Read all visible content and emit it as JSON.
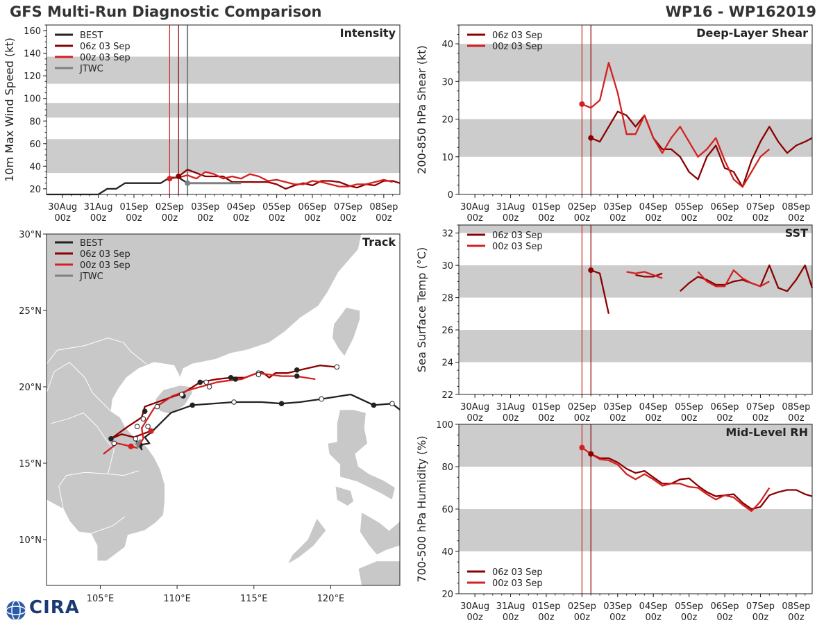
{
  "header": {
    "title": "GFS Multi-Run Diagnostic Comparison",
    "storm_id": "WP16 - WP162019"
  },
  "logo": {
    "text": "CIRA"
  },
  "colors": {
    "best": "#222222",
    "run1": "#8b0000",
    "run2": "#d42020",
    "jtwc": "#808080",
    "band": "#cccccc",
    "land": "#c8c8c8"
  },
  "time_axis": {
    "ticks": [
      {
        "day": "30Aug",
        "hour": "00z"
      },
      {
        "day": "31Aug",
        "hour": "00z"
      },
      {
        "day": "01Sep",
        "hour": "00z"
      },
      {
        "day": "02Sep",
        "hour": "00z"
      },
      {
        "day": "03Sep",
        "hour": "00z"
      },
      {
        "day": "04Sep",
        "hour": "00z"
      },
      {
        "day": "05Sep",
        "hour": "00z"
      },
      {
        "day": "06Sep",
        "hour": "00z"
      },
      {
        "day": "07Sep",
        "hour": "00z"
      },
      {
        "day": "08Sep",
        "hour": "00z"
      }
    ],
    "units": "days since 30Aug 00z",
    "xlim": [
      -0.45,
      9.45
    ],
    "run_init_times": [
      3.0,
      3.25
    ],
    "jtwc_time": 3.5
  },
  "chart_data": [
    {
      "id": "intensity",
      "type": "line",
      "title": "Intensity",
      "ylabel": "10m Max Wind Speed (kt)",
      "ylim": [
        15,
        165
      ],
      "yticks": [
        20,
        40,
        60,
        80,
        100,
        120,
        140,
        160
      ],
      "bands": [
        [
          34,
          64
        ],
        [
          83,
          96
        ],
        [
          113,
          137
        ]
      ],
      "legend": [
        "BEST",
        "06z 03 Sep",
        "00z 03 Sep",
        "JTWC"
      ],
      "series": [
        {
          "name": "BEST",
          "key": "best",
          "x": [
            -0.45,
            0,
            0.5,
            1.0,
            1.25,
            1.5,
            1.75,
            2.0,
            2.25,
            2.5,
            2.75,
            3.0,
            3.25,
            3.5
          ],
          "y": [
            15,
            15,
            15,
            15,
            20,
            20,
            25,
            25,
            25,
            25,
            25,
            30,
            30,
            25
          ]
        },
        {
          "name": "06z 03 Sep",
          "key": "run1",
          "x": [
            3.25,
            3.5,
            3.75,
            4.0,
            4.25,
            4.5,
            4.75,
            5.0,
            5.25,
            5.5,
            5.75,
            6.0,
            6.25,
            6.5,
            6.75,
            7.0,
            7.25,
            7.5,
            7.75,
            8.0,
            8.25,
            8.5,
            8.75,
            9.0,
            9.25,
            9.45
          ],
          "y": [
            31,
            37,
            34,
            31,
            31,
            31,
            26,
            26,
            26,
            26,
            26,
            24,
            20,
            23,
            25,
            23,
            27,
            27,
            26,
            23,
            21,
            24,
            23,
            27,
            27,
            25
          ]
        },
        {
          "name": "00z 03 Sep",
          "key": "run2",
          "x": [
            3.0,
            3.25,
            3.5,
            3.75,
            4.0,
            4.25,
            4.5,
            4.75,
            5.0,
            5.25,
            5.5,
            5.75,
            6.0,
            6.25,
            6.5,
            6.75,
            7.0,
            7.25,
            7.5,
            7.75,
            8.0,
            8.25,
            8.5,
            8.75,
            9.0,
            9.25
          ],
          "y": [
            29,
            30,
            32,
            29,
            35,
            33,
            29,
            31,
            29,
            33,
            31,
            27,
            28,
            26,
            24,
            24,
            27,
            26,
            24,
            22,
            22,
            24,
            24,
            26,
            28,
            26
          ]
        },
        {
          "name": "JTWC",
          "key": "jtwc",
          "x": [
            3.5,
            5.0
          ],
          "y": [
            25,
            25
          ]
        }
      ],
      "markers": [
        {
          "series": "run1",
          "x": 3.25,
          "y": 31
        },
        {
          "series": "run2",
          "x": 3.0,
          "y": 29
        },
        {
          "series": "jtwc",
          "x": 3.5,
          "y": 25
        }
      ]
    },
    {
      "id": "shear",
      "type": "line",
      "title": "Deep-Layer Shear",
      "ylabel": "200-850 hPa Shear (kt)",
      "ylim": [
        0,
        45
      ],
      "yticks": [
        0,
        10,
        20,
        30,
        40
      ],
      "bands": [
        [
          10,
          20
        ],
        [
          30,
          40
        ]
      ],
      "legend": [
        "06z 03 Sep",
        "00z 03 Sep"
      ],
      "series": [
        {
          "name": "06z 03 Sep",
          "key": "run1",
          "x": [
            3.25,
            3.5,
            3.75,
            4.0,
            4.25,
            4.5,
            4.75,
            5.0,
            5.25,
            5.5,
            5.75,
            6.0,
            6.25,
            6.5,
            6.75,
            7.0,
            7.25,
            7.5,
            7.75,
            8.0,
            8.25,
            8.5,
            8.75,
            9.0,
            9.25,
            9.45
          ],
          "y": [
            15,
            14,
            18,
            22,
            21,
            18,
            21,
            15,
            12,
            12,
            10,
            6,
            4,
            10,
            13,
            7,
            6,
            2,
            9,
            14,
            18,
            14,
            11,
            13,
            14,
            15
          ]
        },
        {
          "name": "00z 03 Sep",
          "key": "run2",
          "x": [
            3.0,
            3.25,
            3.5,
            3.75,
            4.0,
            4.25,
            4.5,
            4.75,
            5.0,
            5.25,
            5.5,
            5.75,
            6.0,
            6.25,
            6.5,
            6.75,
            7.0,
            7.25,
            7.5,
            7.75,
            8.0,
            8.25
          ],
          "y": [
            24,
            23,
            25,
            35,
            27,
            16,
            16,
            21,
            15,
            11,
            15,
            18,
            14,
            10,
            12,
            15,
            9,
            4,
            2,
            6,
            10,
            12
          ]
        }
      ],
      "markers": [
        {
          "series": "run1",
          "x": 3.25,
          "y": 15
        },
        {
          "series": "run2",
          "x": 3.0,
          "y": 24
        }
      ]
    },
    {
      "id": "sst",
      "type": "line",
      "title": "SST",
      "ylabel": "Sea Surface Temp (°C)",
      "ylim": [
        22,
        32.5
      ],
      "yticks": [
        22,
        24,
        26,
        28,
        30,
        32
      ],
      "bands": [
        [
          24,
          26
        ],
        [
          28,
          30
        ],
        [
          32,
          34
        ]
      ],
      "legend": [
        "06z 03 Sep",
        "00z 03 Sep"
      ],
      "series": [
        {
          "name": "06z 03 Sep",
          "key": "run1",
          "segments": [
            {
              "x": [
                3.25,
                3.5,
                3.75
              ],
              "y": [
                29.7,
                29.5,
                27.0
              ]
            },
            {
              "x": [
                4.5,
                4.75,
                5.0,
                5.25
              ],
              "y": [
                29.4,
                29.3,
                29.3,
                29.5
              ]
            },
            {
              "x": [
                5.75,
                6.0,
                6.25,
                6.5,
                6.75,
                7.0,
                7.25,
                7.5,
                7.75,
                8.0,
                8.25,
                8.5,
                8.75,
                9.0,
                9.25,
                9.45
              ],
              "y": [
                28.4,
                28.9,
                29.3,
                29.1,
                28.8,
                28.8,
                29.0,
                29.1,
                28.9,
                28.7,
                30.0,
                28.6,
                28.4,
                29.1,
                30.0,
                28.6
              ]
            }
          ]
        },
        {
          "name": "00z 03 Sep",
          "key": "run2",
          "segments": [
            {
              "x": [
                4.25,
                4.5,
                4.75,
                5.0,
                5.25
              ],
              "y": [
                29.6,
                29.5,
                29.6,
                29.4,
                29.2
              ]
            },
            {
              "x": [
                6.25,
                6.5,
                6.75,
                7.0,
                7.25,
                7.5,
                7.75,
                8.0,
                8.25
              ],
              "y": [
                29.6,
                29.0,
                28.7,
                28.7,
                29.7,
                29.2,
                28.9,
                28.7,
                29.0
              ]
            }
          ]
        }
      ],
      "markers": [
        {
          "series": "run1",
          "x": 3.25,
          "y": 29.7
        }
      ]
    },
    {
      "id": "rh",
      "type": "line",
      "title": "Mid-Level RH",
      "ylabel": "700-500 hPa Humidity (%)",
      "ylim": [
        20,
        100
      ],
      "yticks": [
        20,
        40,
        60,
        80,
        100
      ],
      "bands": [
        [
          40,
          60
        ],
        [
          80,
          100
        ]
      ],
      "legend": [
        "06z 03 Sep",
        "00z 03 Sep"
      ],
      "legend_position": "bottom-left",
      "series": [
        {
          "name": "06z 03 Sep",
          "key": "run1",
          "x": [
            3.25,
            3.5,
            3.75,
            4.0,
            4.25,
            4.5,
            4.75,
            5.0,
            5.25,
            5.5,
            5.75,
            6.0,
            6.25,
            6.5,
            6.75,
            7.0,
            7.25,
            7.5,
            7.75,
            8.0,
            8.25,
            8.5,
            8.75,
            9.0,
            9.25,
            9.45
          ],
          "y": [
            86,
            84,
            84,
            82,
            79,
            77,
            78,
            75,
            72,
            72,
            74,
            74.5,
            71,
            68,
            66,
            66.5,
            67,
            63,
            60,
            61,
            66.5,
            68,
            69,
            69,
            67,
            66
          ]
        },
        {
          "name": "00z 03 Sep",
          "key": "run2",
          "x": [
            3.0,
            3.25,
            3.5,
            3.75,
            4.0,
            4.25,
            4.5,
            4.75,
            5.0,
            5.25,
            5.5,
            5.75,
            6.0,
            6.25,
            6.5,
            6.75,
            7.0,
            7.25,
            7.5,
            7.75,
            8.0,
            8.25
          ],
          "y": [
            89,
            86,
            83.5,
            83,
            81,
            76.5,
            74,
            76.5,
            74,
            71,
            72,
            72,
            70.5,
            70,
            67,
            64.5,
            66.5,
            65.5,
            62,
            59,
            63.5,
            70
          ]
        }
      ],
      "markers": [
        {
          "series": "run1",
          "x": 3.25,
          "y": 86
        },
        {
          "series": "run2",
          "x": 3.0,
          "y": 89
        }
      ]
    },
    {
      "id": "track",
      "type": "map",
      "title": "Track",
      "lon_range": [
        101.5,
        124.5
      ],
      "lat_range": [
        7,
        30
      ],
      "lon_ticks": [
        105,
        110,
        115,
        120
      ],
      "lat_ticks": [
        10,
        15,
        20,
        25,
        30
      ],
      "lon_tick_labels": [
        "105°E",
        "110°E",
        "115°E",
        "120°E"
      ],
      "lat_tick_labels": [
        "10°N",
        "15°N",
        "20°N",
        "25°N",
        "30°N"
      ],
      "legend": [
        "BEST",
        "06z 03 Sep",
        "00z 03 Sep",
        "JTWC"
      ],
      "tracks": [
        {
          "name": "BEST",
          "key": "best",
          "lon": [
            124.5,
            124.0,
            122.8,
            121.3,
            119.4,
            118.0,
            116.8,
            115.5,
            113.7,
            111.0,
            109.6,
            108.9,
            108.3,
            107.9,
            108.2,
            107.6,
            107.7,
            107.3
          ],
          "lat": [
            18.5,
            18.9,
            18.8,
            19.5,
            19.2,
            19.0,
            18.9,
            19.0,
            19.0,
            18.8,
            18.3,
            17.6,
            17.0,
            16.7,
            16.3,
            16.2,
            15.9,
            16.5
          ],
          "dots_filled": [
            [
              122.8,
              18.8
            ],
            [
              116.8,
              18.9
            ],
            [
              111.0,
              18.8
            ],
            [
              107.6,
              16.2
            ]
          ],
          "dots_open": [
            [
              124.0,
              18.9
            ],
            [
              119.4,
              19.2
            ],
            [
              113.7,
              19.0
            ]
          ]
        },
        {
          "name": "06z 03 Sep",
          "key": "run1",
          "lon": [
            108.3,
            108.0,
            107.2,
            106.4,
            105.7,
            106.8,
            107.7,
            107.9,
            109.0,
            110.4,
            111.5,
            112.6,
            113.5,
            114.4,
            115.5,
            116.0,
            116.4,
            117.2,
            118.0,
            119.3,
            120.3
          ],
          "lat": [
            17.1,
            17.0,
            16.7,
            16.9,
            16.6,
            17.4,
            18.0,
            18.7,
            19.1,
            19.6,
            20.3,
            20.5,
            20.6,
            20.6,
            21.0,
            20.6,
            20.9,
            20.9,
            21.1,
            21.4,
            21.3
          ],
          "dots_filled": [
            [
              108.3,
              17.1
            ],
            [
              105.7,
              16.6
            ],
            [
              107.9,
              18.4
            ],
            [
              110.4,
              19.4
            ],
            [
              111.5,
              20.3
            ],
            [
              113.5,
              20.6
            ],
            [
              117.8,
              21.1
            ]
          ],
          "dots_open": [
            [
              107.3,
              16.6
            ],
            [
              107.8,
              17.9
            ],
            [
              111.9,
              20.3
            ],
            [
              115.3,
              20.9
            ],
            [
              120.4,
              21.3
            ]
          ]
        },
        {
          "name": "00z 03 Sep",
          "key": "run2",
          "lon": [
            105.2,
            106.1,
            107.0,
            107.4,
            107.8,
            107.7,
            108.5,
            109.7,
            110.8,
            111.9,
            112.6,
            113.3,
            114.2,
            115.2,
            116.0,
            116.8,
            117.7,
            119.0
          ],
          "lat": [
            15.6,
            16.3,
            16.1,
            16.0,
            16.6,
            17.3,
            18.6,
            19.4,
            19.8,
            20.1,
            20.3,
            20.4,
            20.5,
            20.9,
            20.8,
            20.7,
            20.7,
            20.5
          ],
          "dots_filled": [
            [
              107.0,
              16.1
            ],
            [
              113.8,
              20.5
            ],
            [
              117.8,
              20.7
            ]
          ],
          "dots_open": [
            [
              105.9,
              16.3
            ],
            [
              107.4,
              17.4
            ],
            [
              108.1,
              17.4
            ],
            [
              108.7,
              18.7
            ],
            [
              110.3,
              19.5
            ],
            [
              112.1,
              20.0
            ],
            [
              115.3,
              20.8
            ]
          ]
        },
        {
          "name": "JTWC",
          "key": "jtwc",
          "lon": [
            107.3,
            107.6,
            107.4
          ],
          "lat": [
            16.2,
            16.5,
            16.0
          ],
          "dots_filled": [],
          "dots_open": []
        }
      ]
    }
  ]
}
